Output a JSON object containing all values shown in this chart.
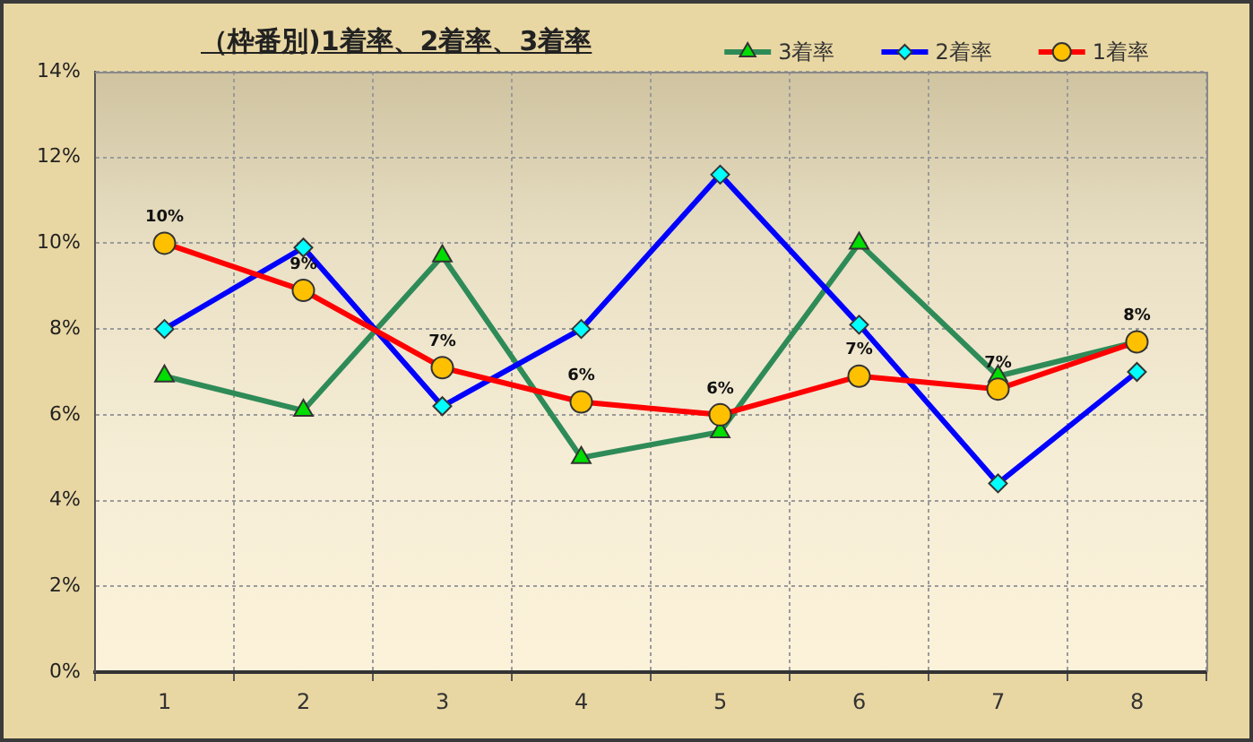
{
  "chart_data": {
    "type": "line",
    "title": "（枠番別)1着率、2着率、3着率",
    "categories": [
      "1",
      "2",
      "3",
      "4",
      "5",
      "6",
      "7",
      "8"
    ],
    "series": [
      {
        "name": "3着率",
        "color": "#2e8b57",
        "marker": "triangle",
        "values": [
          6.9,
          6.1,
          9.7,
          5.0,
          5.6,
          10.0,
          6.9,
          7.7
        ]
      },
      {
        "name": "2着率",
        "color": "#0000ff",
        "marker": "diamond",
        "values": [
          8.0,
          9.9,
          6.2,
          8.0,
          11.6,
          8.1,
          4.4,
          7.0
        ]
      },
      {
        "name": "1着率",
        "color": "#ff0000",
        "marker": "circle",
        "values": [
          10.0,
          8.9,
          7.1,
          6.3,
          6.0,
          6.9,
          6.6,
          7.7
        ],
        "value_labels": [
          "10%",
          "9%",
          "7%",
          "6%",
          "6%",
          "7%",
          "7%",
          "8%"
        ]
      }
    ],
    "ylim": [
      0,
      14
    ],
    "yticks": [
      {
        "value": 0,
        "label": "0%"
      },
      {
        "value": 2,
        "label": "2%"
      },
      {
        "value": 4,
        "label": "4%"
      },
      {
        "value": 6,
        "label": "6%"
      },
      {
        "value": 8,
        "label": "8%"
      },
      {
        "value": 10,
        "label": "10%"
      },
      {
        "value": 12,
        "label": "12%"
      },
      {
        "value": 14,
        "label": "14%"
      }
    ],
    "grid": true,
    "legend": "top right",
    "line_style": "solid"
  }
}
